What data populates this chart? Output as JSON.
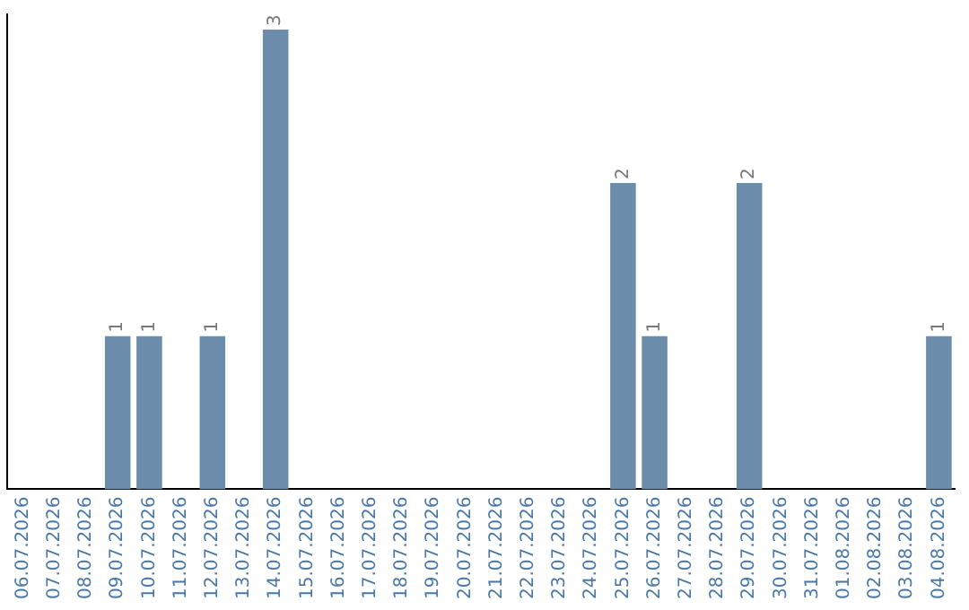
{
  "chart_data": {
    "type": "bar",
    "categories": [
      "06.07.2026",
      "07.07.2026",
      "08.07.2026",
      "09.07.2026",
      "10.07.2026",
      "11.07.2026",
      "12.07.2026",
      "13.07.2026",
      "14.07.2026",
      "15.07.2026",
      "16.07.2026",
      "17.07.2026",
      "18.07.2026",
      "19.07.2026",
      "20.07.2026",
      "21.07.2026",
      "22.07.2026",
      "23.07.2026",
      "24.07.2026",
      "25.07.2026",
      "26.07.2026",
      "27.07.2026",
      "28.07.2026",
      "29.07.2026",
      "30.07.2026",
      "31.07.2026",
      "01.08.2026",
      "02.08.2026",
      "03.08.2026",
      "04.08.2026"
    ],
    "values": [
      null,
      null,
      null,
      1,
      1,
      null,
      1,
      null,
      3,
      null,
      null,
      null,
      null,
      null,
      null,
      null,
      null,
      null,
      null,
      2,
      1,
      null,
      null,
      2,
      null,
      null,
      null,
      null,
      null,
      1
    ],
    "color": "#6b8cab",
    "ylim": [
      0,
      3.1
    ],
    "tick_labels": "x",
    "grid": false,
    "legend": false,
    "data_labels": true
  }
}
